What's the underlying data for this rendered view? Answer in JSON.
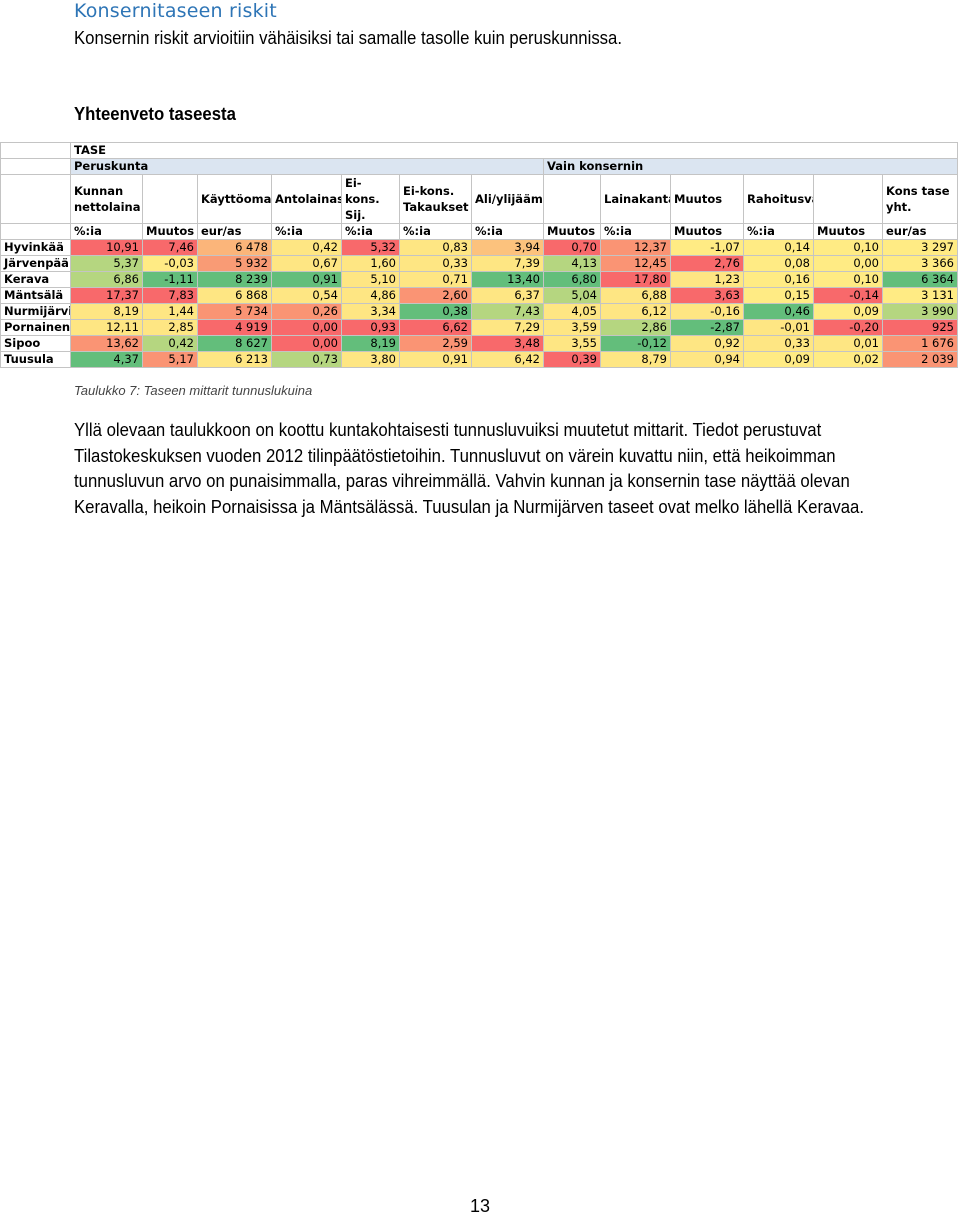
{
  "section_title": "Konsernitaseen riskit",
  "lead_text": "Konsernin riskit arvioitiin vähäisiksi tai samalle tasolle kuin peruskunnissa.",
  "subheading": "Yhteenveto taseesta",
  "table": {
    "title": "TASE",
    "group_peruskunta": "Peruskunta",
    "group_konserni": "Vain konsernin",
    "headers": [
      "Kunnan nettolaina",
      "",
      "Käyttöomaisuus",
      "Antolainasaamiset",
      "Ei-kons. Sij.",
      "Ei-kons. Takaukset",
      "Ali/ylijäämä",
      "",
      "Lainakanta",
      "Muutos",
      "Rahoitusvarallisuus",
      "",
      "Kons tase yht."
    ],
    "units": [
      "%:ia",
      "Muutos",
      "eur/as",
      "%:ia",
      "%:ia",
      "%:ia",
      "%:ia",
      "Muutos",
      "%:ia",
      "Muutos",
      "%:ia",
      "Muutos",
      "eur/as"
    ],
    "rows": [
      {
        "name": "Hyvinkää",
        "values": [
          "10,91",
          "7,46",
          "6 478",
          "0,42",
          "5,32",
          "0,83",
          "3,94",
          "0,70",
          "12,37",
          "-1,07",
          "0,14",
          "0,10",
          "3 297"
        ],
        "colors": [
          "#f8696b",
          "#f8696b",
          "#fbb57a",
          "#fee683",
          "#f8696b",
          "#fee683",
          "#fcc27d",
          "#f8696b",
          "#fa9474",
          "#ffeb84",
          "#ffeb84",
          "#ffeb84",
          "#ffeb84"
        ]
      },
      {
        "name": "Järvenpää",
        "values": [
          "5,37",
          "-0,03",
          "5 932",
          "0,67",
          "1,60",
          "0,33",
          "7,39",
          "4,13",
          "12,45",
          "2,76",
          "0,08",
          "0,00",
          "3 366"
        ],
        "colors": [
          "#b5d680",
          "#ffeb84",
          "#f99b75",
          "#fee683",
          "#fee683",
          "#fee683",
          "#fee683",
          "#b5d680",
          "#fa9474",
          "#f8696b",
          "#ffeb84",
          "#ffeb84",
          "#ffeb84"
        ]
      },
      {
        "name": "Kerava",
        "values": [
          "6,86",
          "-1,11",
          "8 239",
          "0,91",
          "5,10",
          "0,71",
          "13,40",
          "6,80",
          "17,80",
          "1,23",
          "0,16",
          "0,10",
          "6 364"
        ],
        "colors": [
          "#b5d680",
          "#63be7b",
          "#63be7b",
          "#63be7b",
          "#fee683",
          "#fee683",
          "#63be7b",
          "#63be7b",
          "#f8696b",
          "#fee683",
          "#ffeb84",
          "#ffeb84",
          "#63be7b"
        ]
      },
      {
        "name": "Mäntsälä",
        "values": [
          "17,37",
          "7,83",
          "6 868",
          "0,54",
          "4,86",
          "2,60",
          "6,37",
          "5,04",
          "6,88",
          "3,63",
          "0,15",
          "-0,14",
          "3 131"
        ],
        "colors": [
          "#f8696b",
          "#f8696b",
          "#fee683",
          "#fee683",
          "#fee683",
          "#fa9474",
          "#fee683",
          "#b5d680",
          "#fee683",
          "#f8696b",
          "#ffeb84",
          "#f8696b",
          "#ffeb84"
        ]
      },
      {
        "name": "Nurmijärvi",
        "values": [
          "8,19",
          "1,44",
          "5 734",
          "0,26",
          "3,34",
          "0,38",
          "7,43",
          "4,05",
          "6,12",
          "-0,16",
          "0,46",
          "0,09",
          "3 990"
        ],
        "colors": [
          "#fee683",
          "#fee683",
          "#fa9474",
          "#fa9474",
          "#fee683",
          "#63be7b",
          "#b5d680",
          "#fee683",
          "#fee683",
          "#fee683",
          "#63be7b",
          "#ffeb84",
          "#b5d680"
        ]
      },
      {
        "name": "Pornainen",
        "values": [
          "12,11",
          "2,85",
          "4 919",
          "0,00",
          "0,93",
          "6,62",
          "7,29",
          "3,59",
          "2,86",
          "-2,87",
          "-0,01",
          "-0,20",
          "925"
        ],
        "colors": [
          "#fee683",
          "#fee683",
          "#f8696b",
          "#f8696b",
          "#f8696b",
          "#f8696b",
          "#fee683",
          "#fee683",
          "#b5d680",
          "#63be7b",
          "#fee683",
          "#f8696b",
          "#f8696b"
        ]
      },
      {
        "name": "Sipoo",
        "values": [
          "13,62",
          "0,42",
          "8 627",
          "0,00",
          "8,19",
          "2,59",
          "3,48",
          "3,55",
          "-0,12",
          "0,92",
          "0,33",
          "0,01",
          "1 676"
        ],
        "colors": [
          "#fa9474",
          "#b5d680",
          "#63be7b",
          "#f8696b",
          "#63be7b",
          "#fa9474",
          "#f8696b",
          "#fee683",
          "#63be7b",
          "#fee683",
          "#fee683",
          "#fee683",
          "#fa9474"
        ]
      },
      {
        "name": "Tuusula",
        "values": [
          "4,37",
          "5,17",
          "6 213",
          "0,73",
          "3,80",
          "0,91",
          "6,42",
          "0,39",
          "8,79",
          "0,94",
          "0,09",
          "0,02",
          "2 039"
        ],
        "colors": [
          "#63be7b",
          "#fa9474",
          "#fee683",
          "#b5d680",
          "#fee683",
          "#fee683",
          "#fee683",
          "#f8696b",
          "#fee683",
          "#fee683",
          "#ffeb84",
          "#ffeb84",
          "#fa9474"
        ]
      }
    ]
  },
  "caption": "Taulukko 7: Taseen mittarit tunnuslukuina",
  "paragraph": "Yllä olevaan taulukkoon on koottu kuntakohtaisesti tunnusluvuiksi muutetut mittarit. Tiedot perustuvat Tilastokeskuksen vuoden 2012 tilinpäätöstietoihin. Tunnusluvut on värein kuvattu niin, että heikoimman tunnusluvun arvo on punaisimmalla, paras vihreimmällä. Vahvin kunnan ja konsernin tase näyttää olevan Keravalla, heikoin Pornaisissa ja Mäntsälässä. Tuusulan ja Nurmijärven taseet ovat melko lähellä Keravaa.",
  "page_number": "13"
}
